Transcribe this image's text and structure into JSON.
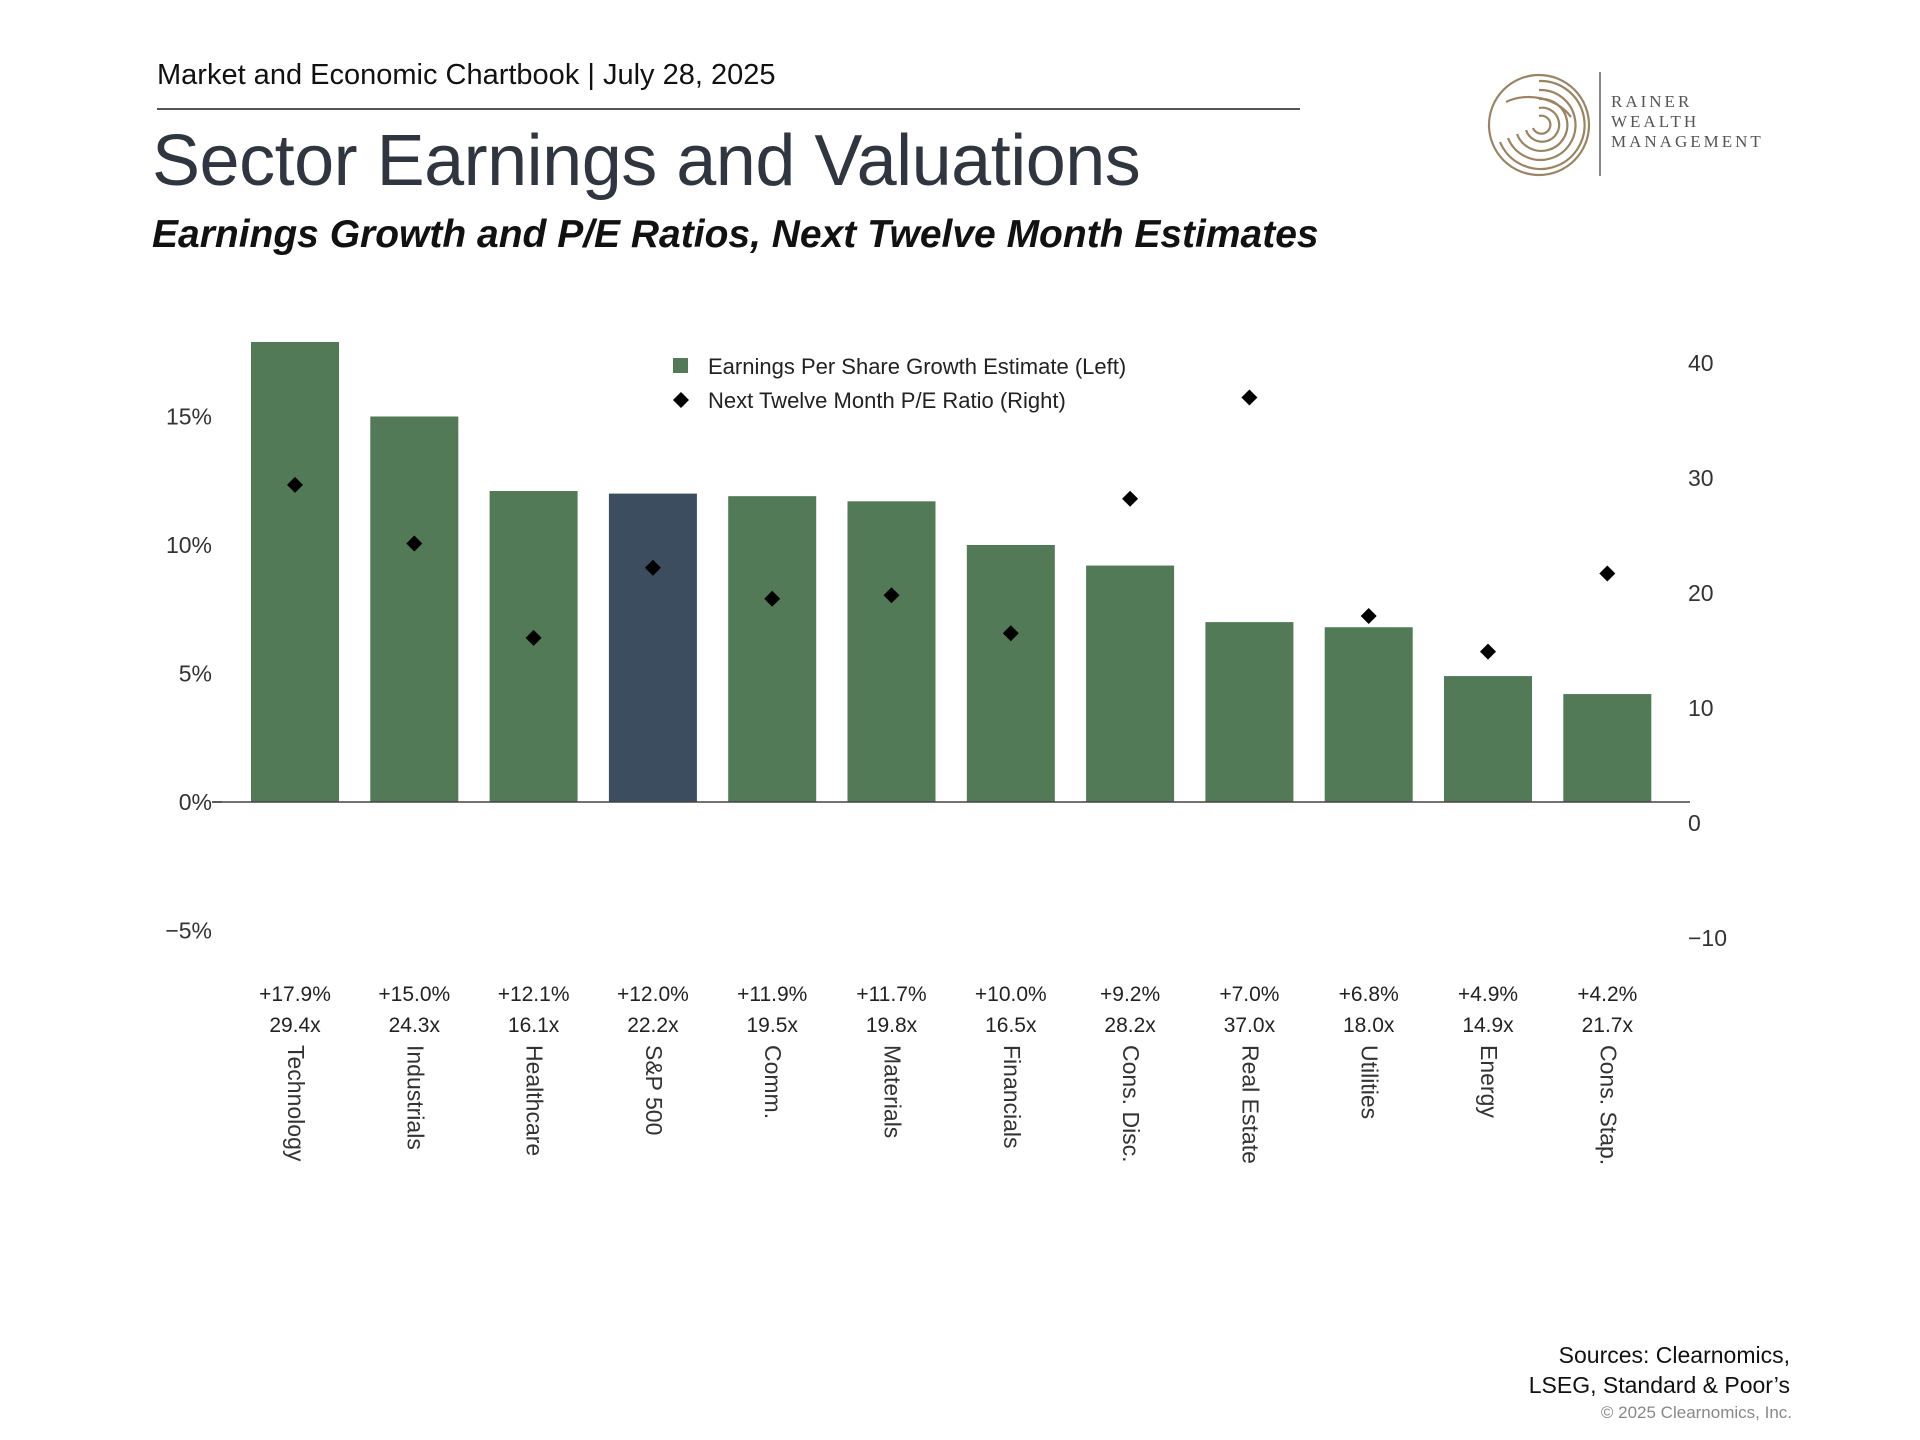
{
  "header": {
    "chartbook": "Market and Economic Chartbook | July 28, 2025",
    "title": "Sector Earnings and Valuations",
    "subtitle": "Earnings Growth and P/E Ratios, Next Twelve Month Estimates"
  },
  "logo": {
    "lines": [
      "RAINER",
      "WEALTH",
      "MANAGEMENT"
    ],
    "color": "#9b8462"
  },
  "colors": {
    "bar": "#527a56",
    "highlight_bar": "#3b4d5e",
    "marker": "#000000",
    "axis_text": "#333333"
  },
  "chart_data": {
    "type": "bar",
    "categories": [
      "Technology",
      "Industrials",
      "Healthcare",
      "S&P 500",
      "Comm.",
      "Materials",
      "Financials",
      "Cons. Disc.",
      "Real Estate",
      "Utilities",
      "Energy",
      "Cons. Stap."
    ],
    "highlight_category": "S&P 500",
    "series": [
      {
        "name": "Earnings Per Share Growth Estimate (Left)",
        "type": "bar",
        "axis": "left",
        "values": [
          17.9,
          15.0,
          12.1,
          12.0,
          11.9,
          11.7,
          10.0,
          9.2,
          7.0,
          6.8,
          4.9,
          4.2
        ]
      },
      {
        "name": "Next Twelve Month P/E Ratio (Right)",
        "type": "scatter",
        "marker": "diamond",
        "axis": "right",
        "values": [
          29.4,
          24.3,
          16.1,
          22.2,
          19.5,
          19.8,
          16.5,
          28.2,
          37.0,
          18.0,
          14.9,
          21.7
        ]
      }
    ],
    "value_labels": {
      "growth": [
        "+17.9%",
        "+15.0%",
        "+12.1%",
        "+12.0%",
        "+11.9%",
        "+11.7%",
        "+10.0%",
        "+9.2%",
        "+7.0%",
        "+6.8%",
        "+4.9%",
        "+4.2%"
      ],
      "pe": [
        "29.4x",
        "24.3x",
        "16.1x",
        "22.2x",
        "19.5x",
        "19.8x",
        "16.5x",
        "28.2x",
        "37.0x",
        "18.0x",
        "14.9x",
        "21.7x"
      ]
    },
    "left_axis": {
      "ticks": [
        -5,
        0,
        5,
        10,
        15
      ],
      "tick_labels": [
        "−5%",
        "0%",
        "5%",
        "10%",
        "15%"
      ]
    },
    "right_axis": {
      "ticks": [
        -10,
        0,
        10,
        20,
        30,
        40
      ],
      "tick_labels": [
        "−10",
        "0",
        "10",
        "20",
        "30",
        "40"
      ]
    },
    "legend_position": "top-center",
    "grid": false
  },
  "footer": {
    "sources_line1": "Sources: Clearnomics,",
    "sources_line2": "LSEG, Standard & Poor’s",
    "copyright": "© 2025 Clearnomics, Inc."
  }
}
